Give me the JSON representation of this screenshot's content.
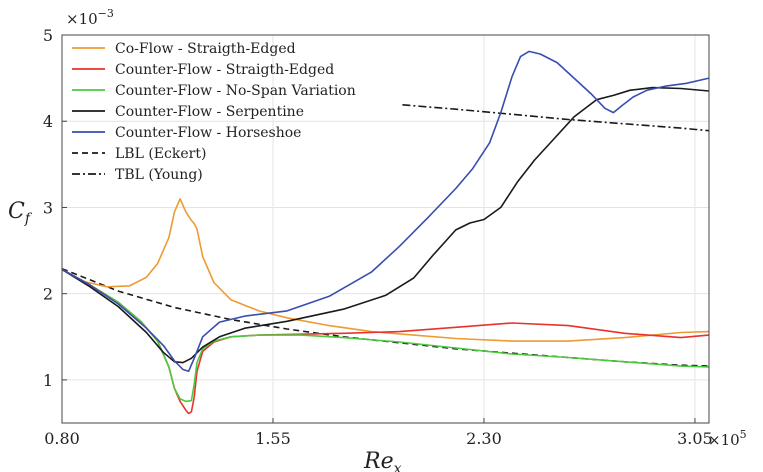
{
  "chart_data": {
    "type": "line",
    "xlabel": "Re",
    "xlabel_sub": "x",
    "ylabel": "C",
    "ylabel_sub": "f",
    "xlim": [
      80000,
      310000
    ],
    "ylim": [
      0.0005,
      0.005
    ],
    "x_ticks": [
      80000,
      155000,
      230000,
      305000
    ],
    "x_tick_labels": [
      "0.80",
      "1.55",
      "2.30",
      "3.05"
    ],
    "x_exponent": "×10",
    "x_exponent_power": "5",
    "y_ticks": [
      0.001,
      0.002,
      0.003,
      0.004,
      0.005
    ],
    "y_tick_labels": [
      "1",
      "2",
      "3",
      "4",
      "5"
    ],
    "y_exponent": "×10",
    "y_exponent_power": "−3",
    "grid": true,
    "legend_position": "top-left",
    "series": [
      {
        "name": "Co-Flow - Straigth-Edged",
        "color": "#ED9B33",
        "dash": "",
        "x": [
          80000,
          88000,
          96000,
          104000,
          110000,
          114000,
          118000,
          120000,
          122000,
          124000,
          126000,
          127000,
          128000,
          130000,
          134000,
          140000,
          150000,
          160000,
          175000,
          190000,
          205000,
          220000,
          240000,
          260000,
          280000,
          300000,
          310000
        ],
        "y": [
          0.00228,
          0.00214,
          0.00208,
          0.00209,
          0.00219,
          0.00235,
          0.00265,
          0.00295,
          0.0031,
          0.00295,
          0.00285,
          0.00281,
          0.00275,
          0.00243,
          0.00213,
          0.00193,
          0.0018,
          0.00172,
          0.00163,
          0.00156,
          0.00152,
          0.00148,
          0.00145,
          0.00145,
          0.00149,
          0.00155,
          0.00156
        ]
      },
      {
        "name": "Counter-Flow - Straigth-Edged",
        "color": "#E8322E",
        "dash": "",
        "x": [
          80000,
          90000,
          100000,
          108000,
          114000,
          118000,
          120000,
          122000,
          124000,
          125000,
          126000,
          127000,
          128000,
          130000,
          134000,
          140000,
          150000,
          165000,
          180000,
          200000,
          220000,
          240000,
          260000,
          280000,
          300000,
          310000
        ],
        "y": [
          0.00228,
          0.0021,
          0.0019,
          0.00168,
          0.00145,
          0.00115,
          0.0009,
          0.00075,
          0.00065,
          0.00061,
          0.00063,
          0.0008,
          0.0011,
          0.00133,
          0.00144,
          0.0015,
          0.00152,
          0.00153,
          0.00154,
          0.00156,
          0.00161,
          0.00166,
          0.00163,
          0.00154,
          0.00149,
          0.00152
        ]
      },
      {
        "name": "Counter-Flow - No-Span Variation",
        "color": "#4CC940",
        "dash": "",
        "x": [
          80000,
          90000,
          100000,
          108000,
          114000,
          118000,
          120000,
          122000,
          124000,
          126000,
          127000,
          128000,
          130000,
          134000,
          140000,
          150000,
          165000,
          180000,
          200000,
          220000,
          240000,
          260000,
          280000,
          300000,
          310000
        ],
        "y": [
          0.00228,
          0.0021,
          0.0019,
          0.00168,
          0.00145,
          0.00115,
          0.0009,
          0.00078,
          0.00075,
          0.00076,
          0.00095,
          0.0012,
          0.00136,
          0.00145,
          0.0015,
          0.00152,
          0.00152,
          0.00149,
          0.00144,
          0.00137,
          0.0013,
          0.00126,
          0.00121,
          0.00116,
          0.00115
        ]
      },
      {
        "name": "Counter-Flow - Serpentine",
        "color": "#1A1A1A",
        "dash": "",
        "x": [
          80000,
          90000,
          100000,
          110000,
          116000,
          120000,
          123000,
          126000,
          130000,
          136000,
          145000,
          160000,
          180000,
          195000,
          205000,
          212000,
          220000,
          225000,
          230000,
          236000,
          242000,
          248000,
          255000,
          262000,
          270000,
          276000,
          282000,
          290000,
          300000,
          310000
        ],
        "y": [
          0.00228,
          0.00208,
          0.00185,
          0.00155,
          0.00132,
          0.00121,
          0.0012,
          0.00125,
          0.00138,
          0.0015,
          0.0016,
          0.00168,
          0.00182,
          0.00198,
          0.00218,
          0.00245,
          0.00274,
          0.00282,
          0.00286,
          0.003,
          0.0033,
          0.00355,
          0.0038,
          0.00405,
          0.00425,
          0.0043,
          0.00436,
          0.00439,
          0.00438,
          0.00435
        ]
      },
      {
        "name": "Counter-Flow - Horseshoe",
        "color": "#3A4DB0",
        "dash": "",
        "x": [
          80000,
          90000,
          100000,
          110000,
          116000,
          120000,
          123000,
          125000,
          127000,
          130000,
          136000,
          145000,
          160000,
          175000,
          190000,
          200000,
          210000,
          220000,
          226000,
          232000,
          236000,
          240000,
          243000,
          246000,
          250000,
          256000,
          262000,
          268000,
          273000,
          276000,
          279000,
          283000,
          288000,
          295000,
          302000,
          310000
        ],
        "y": [
          0.00228,
          0.0021,
          0.00188,
          0.0016,
          0.0014,
          0.00122,
          0.00112,
          0.0011,
          0.00125,
          0.0015,
          0.00167,
          0.00174,
          0.0018,
          0.00197,
          0.00225,
          0.00255,
          0.00288,
          0.00322,
          0.00345,
          0.00375,
          0.0041,
          0.00452,
          0.00475,
          0.00481,
          0.00478,
          0.00468,
          0.0045,
          0.00432,
          0.00415,
          0.0041,
          0.00418,
          0.00428,
          0.00436,
          0.00441,
          0.00444,
          0.0045
        ]
      },
      {
        "name": "LBL (Eckert)",
        "color": "#1A1A1A",
        "dash": "6,4",
        "x": [
          80000,
          100000,
          120000,
          140000,
          160000,
          180000,
          200000,
          220000,
          240000,
          260000,
          280000,
          300000,
          310000
        ],
        "y": [
          0.00229,
          0.00203,
          0.00184,
          0.0017,
          0.00159,
          0.0015,
          0.00143,
          0.00136,
          0.00131,
          0.00126,
          0.00121,
          0.00117,
          0.00116
        ]
      },
      {
        "name": "TBL (Young)",
        "color": "#1A1A1A",
        "dash": "8,3,2,3",
        "x": [
          201000,
          220000,
          240000,
          260000,
          280000,
          300000,
          310000
        ],
        "y": [
          0.00419,
          0.00414,
          0.00408,
          0.00402,
          0.00397,
          0.00392,
          0.00389
        ]
      }
    ]
  }
}
